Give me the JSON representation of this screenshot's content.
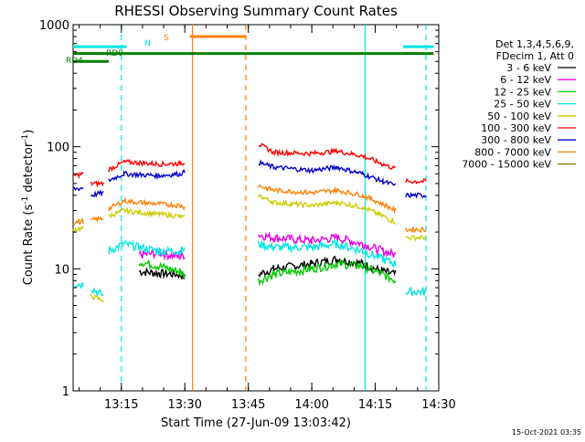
{
  "chart_data": {
    "type": "line",
    "title": "RHESSI Observing Summary Count Rates",
    "xlabel": "Start Time (27-Jun-09 13:03:42)",
    "ylabel_main": "Count Rate (s",
    "ylabel_sup1": "-1",
    "ylabel_mid": " detector",
    "ylabel_sup2": "-1",
    "ylabel_end": ")",
    "yscale": "log",
    "ylim": [
      1,
      1000
    ],
    "xlim_minutes": [
      13.067,
      14.45
    ],
    "x_ticks": [
      {
        "label": "13:15",
        "hours": 13.25
      },
      {
        "label": "13:30",
        "hours": 13.5
      },
      {
        "label": "13:45",
        "hours": 13.75
      },
      {
        "label": "14:00",
        "hours": 14.0
      },
      {
        "label": "14:15",
        "hours": 14.25
      },
      {
        "label": "14:30",
        "hours": 14.5
      }
    ],
    "y_ticks": [
      {
        "label": "1",
        "value": 1
      },
      {
        "label": "10",
        "value": 10
      },
      {
        "label": "100",
        "value": 100
      },
      {
        "label": "1000",
        "value": 1000
      }
    ],
    "legend": {
      "header1": "Det 1,3,4,5,6,9,",
      "header2": "FDecim 1, Att 0",
      "placement": "right"
    },
    "series": [
      {
        "name": "3 - 6 keV",
        "color": "#000000",
        "segments": [
          [
            [
              13.32,
              9.5
            ],
            [
              13.4,
              9.2
            ],
            [
              13.48,
              9.0
            ],
            [
              13.5,
              8.5
            ]
          ],
          [
            [
              13.79,
              9
            ],
            [
              13.85,
              10
            ],
            [
              14.0,
              11
            ],
            [
              14.1,
              12
            ],
            [
              14.2,
              11
            ],
            [
              14.28,
              9.5
            ],
            [
              14.33,
              9
            ]
          ]
        ]
      },
      {
        "name": "6 - 12 keV",
        "color": "#e600e6",
        "segments": [
          [
            [
              13.32,
              13
            ],
            [
              13.4,
              13.5
            ],
            [
              13.48,
              12.5
            ],
            [
              13.5,
              13
            ]
          ],
          [
            [
              13.79,
              19
            ],
            [
              13.85,
              18
            ],
            [
              14.0,
              17
            ],
            [
              14.1,
              18
            ],
            [
              14.2,
              16
            ],
            [
              14.28,
              14
            ],
            [
              14.33,
              13
            ]
          ]
        ]
      },
      {
        "name": "12 - 25 keV",
        "color": "#00cc00",
        "segments": [
          [
            [
              13.32,
              11.5
            ],
            [
              13.4,
              10.5
            ],
            [
              13.48,
              9.5
            ],
            [
              13.5,
              9
            ]
          ],
          [
            [
              13.79,
              8
            ],
            [
              13.85,
              9
            ],
            [
              14.0,
              10
            ],
            [
              14.1,
              11
            ],
            [
              14.2,
              10.5
            ],
            [
              14.28,
              9
            ],
            [
              14.33,
              8
            ]
          ]
        ]
      },
      {
        "name": "25 - 50 keV",
        "color": "#00e5e5",
        "segments": [
          [
            [
              13.06,
              7.5
            ],
            [
              13.1,
              7.5
            ]
          ],
          [
            [
              13.13,
              7
            ],
            [
              13.18,
              6
            ]
          ],
          [
            [
              13.2,
              14
            ],
            [
              13.26,
              16
            ],
            [
              13.32,
              15
            ],
            [
              13.4,
              14
            ],
            [
              13.48,
              14
            ],
            [
              13.5,
              14.5
            ]
          ],
          [
            [
              13.79,
              16
            ],
            [
              13.85,
              15
            ],
            [
              14.0,
              15
            ],
            [
              14.1,
              16
            ],
            [
              14.2,
              14
            ],
            [
              14.28,
              12
            ],
            [
              14.33,
              11
            ]
          ],
          [
            [
              14.37,
              6.5
            ],
            [
              14.45,
              6.5
            ]
          ]
        ]
      },
      {
        "name": "50 - 100 keV",
        "color": "#cccc00",
        "segments": [
          [
            [
              13.06,
              21
            ],
            [
              13.1,
              21.5
            ]
          ],
          [
            [
              13.13,
              6
            ],
            [
              13.18,
              5.5
            ]
          ],
          [
            [
              13.2,
              27
            ],
            [
              13.26,
              30
            ],
            [
              13.32,
              29
            ],
            [
              13.4,
              28
            ],
            [
              13.48,
              27
            ],
            [
              13.5,
              26
            ]
          ],
          [
            [
              13.79,
              40
            ],
            [
              13.85,
              35
            ],
            [
              14.0,
              33
            ],
            [
              14.1,
              35
            ],
            [
              14.2,
              32
            ],
            [
              14.28,
              27
            ],
            [
              14.33,
              24
            ]
          ],
          [
            [
              14.37,
              18
            ],
            [
              14.45,
              18
            ]
          ]
        ]
      },
      {
        "name": "100 - 300 keV",
        "color": "#ff0000",
        "segments": [
          [
            [
              13.06,
              58
            ],
            [
              13.1,
              60
            ]
          ],
          [
            [
              13.13,
              50
            ],
            [
              13.18,
              50
            ]
          ],
          [
            [
              13.2,
              65
            ],
            [
              13.26,
              75
            ],
            [
              13.32,
              74
            ],
            [
              13.4,
              72
            ],
            [
              13.48,
              73
            ],
            [
              13.5,
              75
            ]
          ],
          [
            [
              13.79,
              105
            ],
            [
              13.85,
              90
            ],
            [
              14.0,
              88
            ],
            [
              14.1,
              92
            ],
            [
              14.2,
              84
            ],
            [
              14.28,
              72
            ],
            [
              14.33,
              66
            ]
          ],
          [
            [
              14.37,
              52
            ],
            [
              14.45,
              52
            ]
          ]
        ]
      },
      {
        "name": "300 - 800 keV",
        "color": "#0000cc",
        "segments": [
          [
            [
              13.06,
              45
            ],
            [
              13.1,
              46
            ]
          ],
          [
            [
              13.13,
              40
            ],
            [
              13.18,
              42
            ]
          ],
          [
            [
              13.2,
              53
            ],
            [
              13.26,
              60
            ],
            [
              13.32,
              59
            ],
            [
              13.4,
              58
            ],
            [
              13.48,
              60
            ],
            [
              13.5,
              62
            ]
          ],
          [
            [
              13.79,
              74
            ],
            [
              13.85,
              68
            ],
            [
              14.0,
              64
            ],
            [
              14.1,
              68
            ],
            [
              14.2,
              60
            ],
            [
              14.28,
              52
            ],
            [
              14.33,
              48
            ]
          ],
          [
            [
              14.37,
              40
            ],
            [
              14.45,
              40
            ]
          ]
        ]
      },
      {
        "name": "800 - 7000 keV",
        "color": "#ff8000",
        "segments": [
          [
            [
              13.06,
              24
            ],
            [
              13.1,
              24.5
            ]
          ],
          [
            [
              13.13,
              25
            ],
            [
              13.18,
              26
            ]
          ],
          [
            [
              13.2,
              31
            ],
            [
              13.26,
              36
            ],
            [
              13.32,
              35
            ],
            [
              13.4,
              34
            ],
            [
              13.48,
              33
            ],
            [
              13.5,
              32
            ]
          ],
          [
            [
              13.79,
              48
            ],
            [
              13.85,
              44
            ],
            [
              14.0,
              42
            ],
            [
              14.1,
              44
            ],
            [
              14.2,
              40
            ],
            [
              14.28,
              34
            ],
            [
              14.33,
              30
            ]
          ],
          [
            [
              14.37,
              21
            ],
            [
              14.45,
              21
            ]
          ]
        ]
      },
      {
        "name": "7000 - 15000 keV",
        "color": "#996600",
        "segments": []
      }
    ],
    "flags": [
      {
        "label": "N",
        "color": "#00e5e5",
        "level": 660,
        "start": 13.06,
        "end": 13.27
      },
      {
        "label": "N",
        "color": "#00e5e5",
        "level": 660,
        "start": 14.36,
        "end": 14.48
      },
      {
        "label": "RD0",
        "color": "#007f00",
        "level": 580,
        "start": 13.06,
        "end": 14.48
      },
      {
        "label": "RD4",
        "color": "#007f00",
        "level": 500,
        "start": 13.06,
        "end": 13.2
      },
      {
        "label": "S",
        "color": "#ff8000",
        "level": 800,
        "start": 13.52,
        "end": 13.74
      }
    ],
    "vlines": [
      {
        "hours": 13.25,
        "color": "#00e5e5",
        "style": "dashed"
      },
      {
        "hours": 13.53,
        "color": "#ff8000",
        "style": "solid"
      },
      {
        "hours": 13.74,
        "color": "#ff8000",
        "style": "dashed"
      },
      {
        "hours": 14.21,
        "color": "#00e5e5",
        "style": "solid"
      },
      {
        "hours": 14.45,
        "color": "#00e5e5",
        "style": "dashed"
      }
    ]
  },
  "footer": {
    "timestamp": "15-Oct-2021 03:35"
  }
}
